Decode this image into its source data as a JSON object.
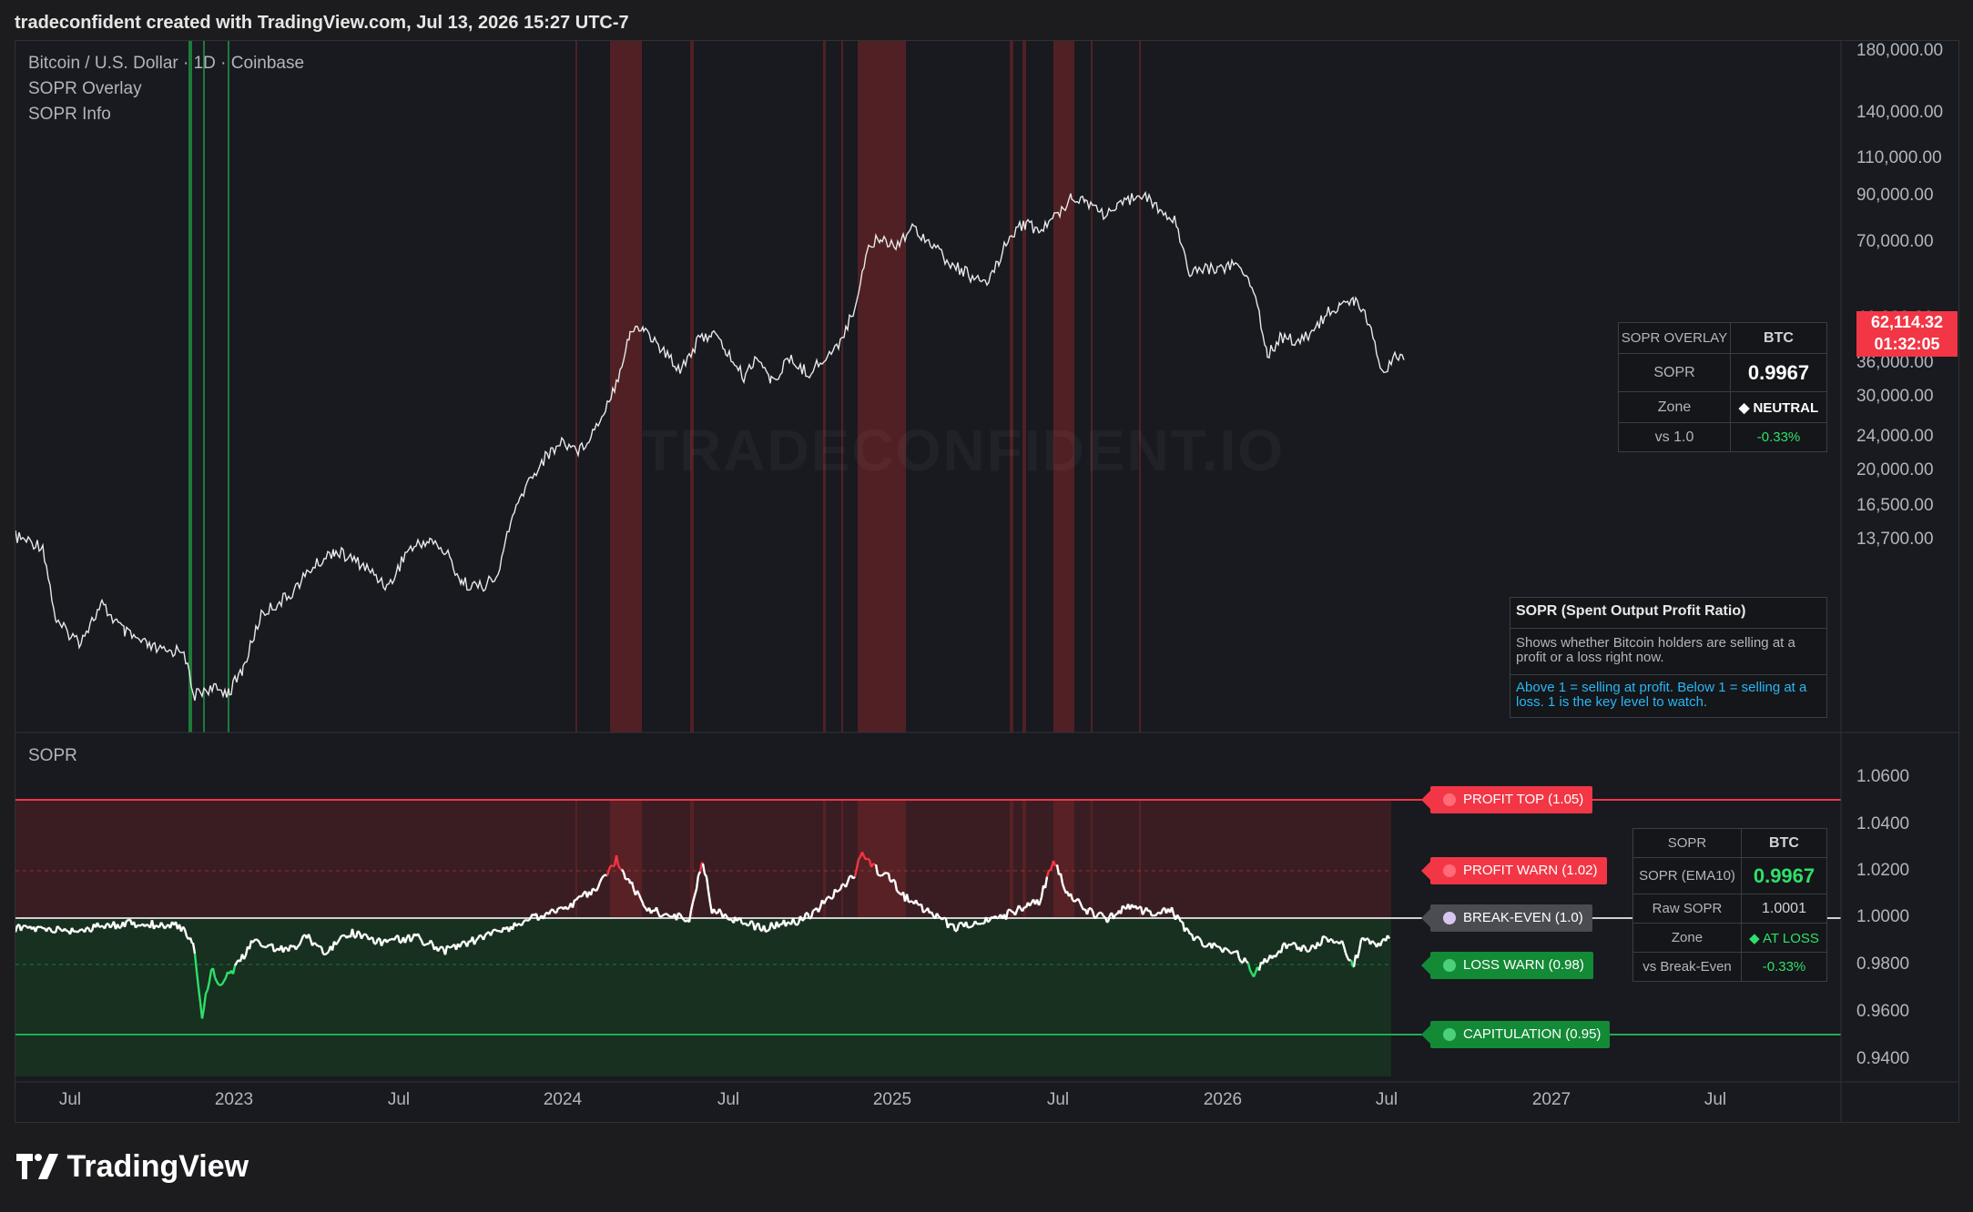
{
  "header": {
    "title": "tradeconfident created with TradingView.com, Jul 13, 2026 15:27 UTC-7"
  },
  "legend": {
    "symbol": "Bitcoin / U.S. Dollar · 1D · Coinbase",
    "overlay": "SOPR Overlay",
    "info": "SOPR Info"
  },
  "watermark": "TRADECONFIDENT.IO",
  "price_axis": [
    "180,000.00",
    "140,000.00",
    "110,000.00",
    "90,000.00",
    "70,000.00",
    "46,000.00",
    "36,000.00",
    "30,000.00",
    "24,000.00",
    "20,000.00",
    "16,500.00",
    "13,700.00"
  ],
  "last_price": {
    "value": "62,114.32",
    "countdown": "01:32:05"
  },
  "sopr_pane": {
    "title": "SOPR",
    "axis": [
      "1.0600",
      "1.0400",
      "1.0200",
      "1.0000",
      "0.9800",
      "0.9600",
      "0.9400"
    ]
  },
  "time_axis": [
    "Jul",
    "2023",
    "Jul",
    "2024",
    "Jul",
    "2025",
    "Jul",
    "2026",
    "Jul",
    "2027",
    "Jul"
  ],
  "overlay_table": {
    "header_left": "SOPR OVERLAY",
    "header_right": "BTC",
    "rows": [
      {
        "label": "SOPR",
        "value": "0.9967"
      },
      {
        "label": "Zone",
        "value": "◆ NEUTRAL"
      },
      {
        "label": "vs 1.0",
        "value": "-0.33%"
      }
    ]
  },
  "info_box": {
    "title": "SOPR (Spent Output Profit Ratio)",
    "body": "Shows whether Bitcoin holders are selling at a profit or a loss right now.",
    "key": "Above 1 = selling at profit.  Below 1 = selling at a loss.  1 is the key level to watch."
  },
  "sopr_table": {
    "header_left": "SOPR",
    "header_right": "BTC",
    "rows": [
      {
        "label": "SOPR (EMA10)",
        "value": "0.9967"
      },
      {
        "label": "Raw SOPR",
        "value": "1.0001"
      },
      {
        "label": "Zone",
        "value": "◆ AT LOSS"
      },
      {
        "label": "vs Break-Even",
        "value": "-0.33%"
      }
    ]
  },
  "levels": [
    {
      "label": "PROFIT TOP (1.05)",
      "value": 1.05,
      "color": "#f23645"
    },
    {
      "label": "PROFIT WARN (1.02)",
      "value": 1.02,
      "color": "#f23645"
    },
    {
      "label": "BREAK-EVEN (1.0)",
      "value": 1.0,
      "color": "#4a4c52"
    },
    {
      "label": "LOSS WARN (0.98)",
      "value": 0.98,
      "color": "#138a36"
    },
    {
      "label": "CAPITULATION (0.95)",
      "value": 0.95,
      "color": "#138a36"
    }
  ],
  "colors": {
    "profit": "#f23645",
    "loss": "#22ab52",
    "background": "#181a20",
    "accent_green": "#2ee06a"
  },
  "footer": {
    "brand": "TradingView"
  }
}
